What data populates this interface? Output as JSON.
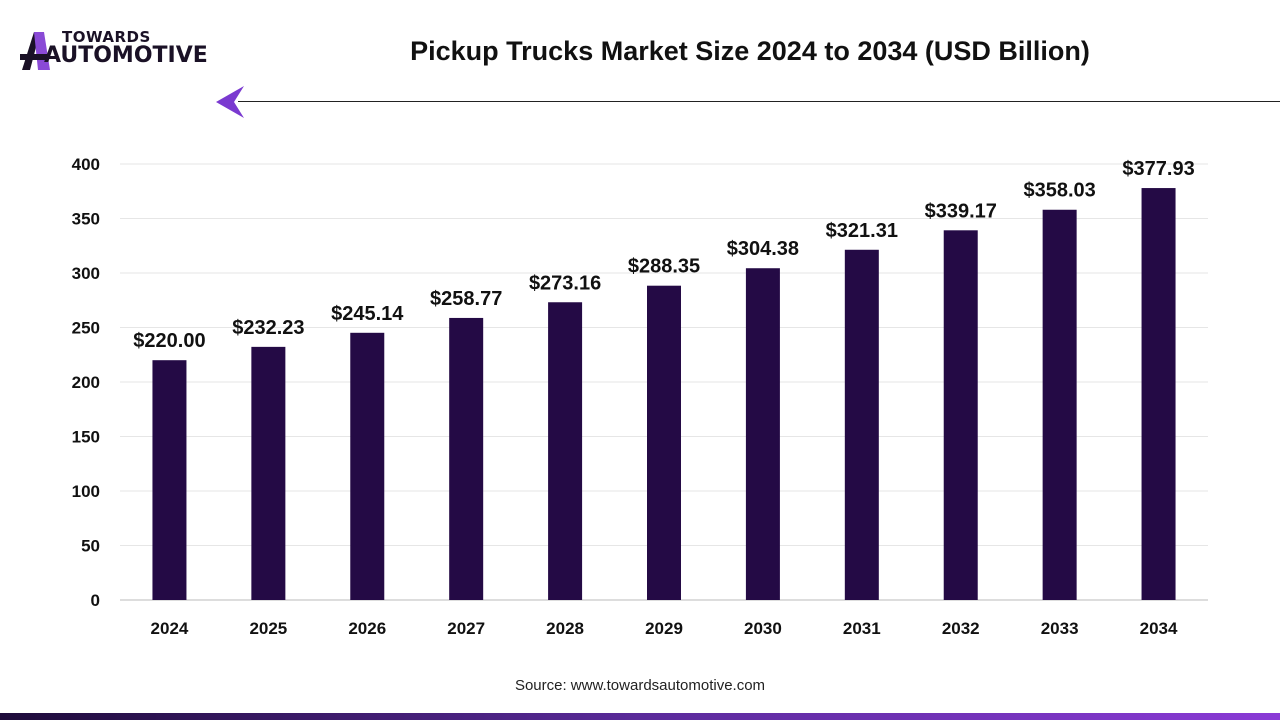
{
  "brand": {
    "line1": "TOWARDS",
    "line2": "AUTOMOTIVE"
  },
  "source": "Source: www.towardsautomotive.com",
  "colors": {
    "bar": "#240a45",
    "accent": "#8a3ad6",
    "grid": "#e6e6e6"
  },
  "chart_data": {
    "type": "bar",
    "title": "Pickup Trucks Market Size 2024 to 2034 (USD Billion)",
    "categories": [
      "2024",
      "2025",
      "2026",
      "2027",
      "2028",
      "2029",
      "2030",
      "2031",
      "2032",
      "2033",
      "2034"
    ],
    "values": [
      220.0,
      232.23,
      245.14,
      258.77,
      273.16,
      288.35,
      304.38,
      321.31,
      339.17,
      358.03,
      377.93
    ],
    "data_labels": [
      "$220.00",
      "$232.23",
      "$245.14",
      "$258.77",
      "$273.16",
      "$288.35",
      "$304.38",
      "$321.31",
      "$339.17",
      "$358.03",
      "$377.93"
    ],
    "yticks": [
      "0",
      "50",
      "100",
      "150",
      "200",
      "250",
      "300",
      "350",
      "400"
    ],
    "ylim": [
      0,
      400
    ],
    "grid": true,
    "xlabel": "",
    "ylabel": ""
  }
}
